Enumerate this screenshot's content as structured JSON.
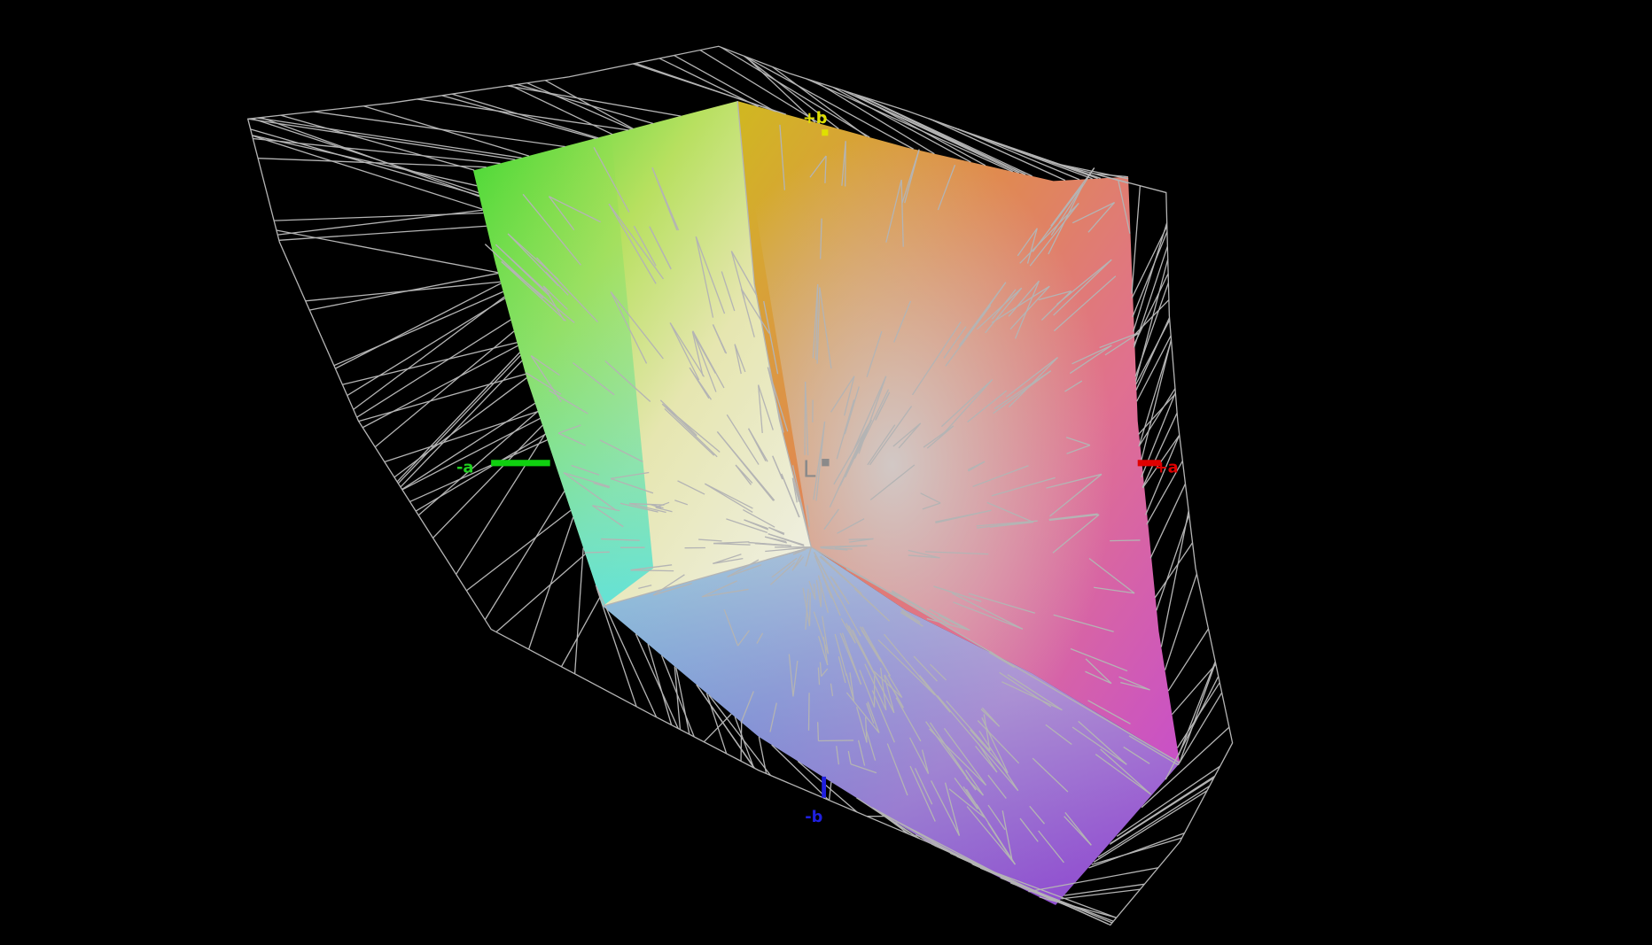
{
  "axes": {
    "plus_b": {
      "label": "+b",
      "color": "#e0e000"
    },
    "minus_a": {
      "label": "-a",
      "color": "#20d020"
    },
    "plus_a": {
      "label": "+a",
      "color": "#e00000"
    },
    "minus_b": {
      "label": "-b",
      "color": "#2020e0"
    },
    "L": {
      "label": "L",
      "color": "#8a8a8a"
    }
  },
  "wireframe_color": "#b4b4b4",
  "background": "#000000"
}
